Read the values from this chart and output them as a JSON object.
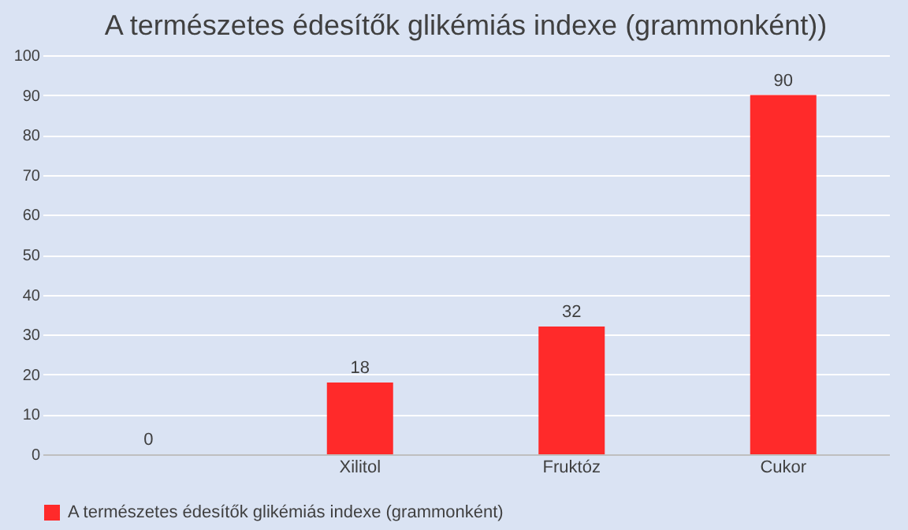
{
  "chart_data": {
    "type": "bar",
    "title": "A természetes édesítők glikémiás indexe (grammonként))",
    "categories": [
      null,
      "Xilitol",
      "Fruktóz",
      "Cukor"
    ],
    "series": [
      {
        "name": "A természetes édesítők glikémiás indexe (grammonként)",
        "color": "#ff2a2a",
        "values": [
          0,
          18,
          32,
          90
        ]
      }
    ],
    "ylim": [
      0,
      100
    ],
    "yticks": [
      0,
      10,
      20,
      30,
      40,
      50,
      60,
      70,
      80,
      90,
      100
    ],
    "grid": "y",
    "legend": "bottom",
    "data_labels": true
  }
}
